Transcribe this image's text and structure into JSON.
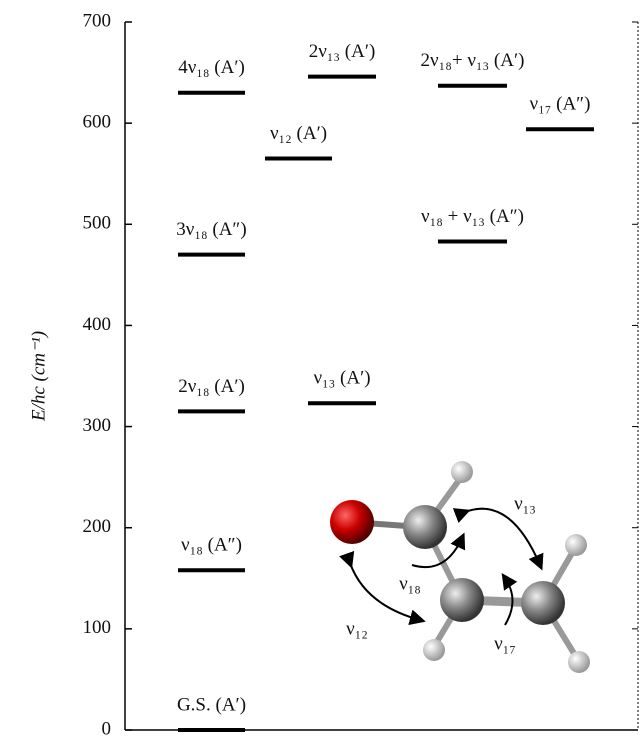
{
  "chart_data": {
    "type": "energy-levels",
    "ylabel": "E/hc (cm⁻¹)",
    "ylim": [
      0,
      700
    ],
    "yticks": [
      0,
      100,
      200,
      300,
      400,
      500,
      600,
      700
    ],
    "color": "#000000",
    "columns": [
      [
        {
          "label": "G.S. (A′)",
          "value": 0
        },
        {
          "label": "ν₁₈ (A″)",
          "value": 158
        },
        {
          "label": "2ν₁₈ (A′)",
          "value": 315
        },
        {
          "label": "3ν₁₈ (A″)",
          "value": 470
        },
        {
          "label": "4ν₁₈ (A′)",
          "value": 630
        }
      ],
      [
        {
          "label": "ν₁₂ (A′)",
          "value": 565
        }
      ],
      [
        {
          "label": "ν₁₃ (A′)",
          "value": 323
        },
        {
          "label": "2ν₁₃ (A′)",
          "value": 646
        }
      ],
      [
        {
          "label": "ν₁₈ + ν₁₃ (A″)",
          "value": 483
        },
        {
          "label": "2ν₁₈+ ν₁₃ (A′)",
          "value": 637
        }
      ],
      [
        {
          "label": "ν₁₇ (A″)",
          "value": 594
        }
      ]
    ],
    "inset_labels": [
      "ν₁₃",
      "ν₁₈",
      "ν₁₂",
      "ν₁₇"
    ]
  }
}
